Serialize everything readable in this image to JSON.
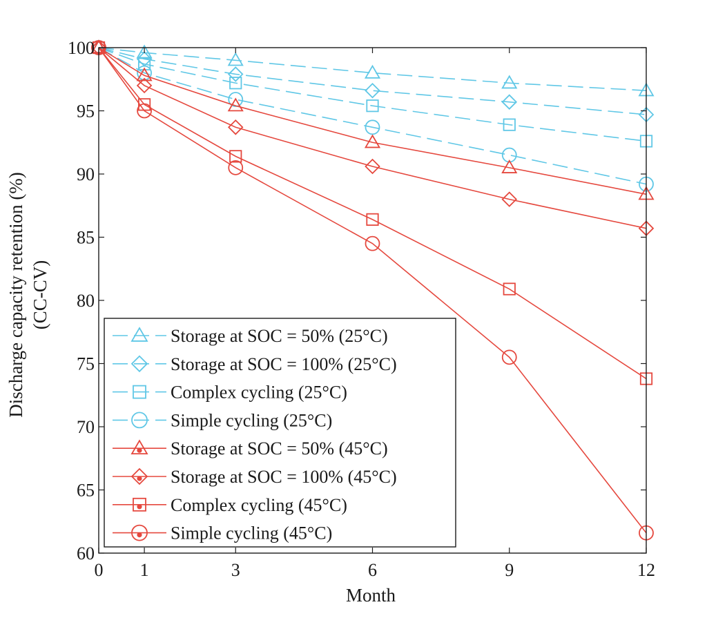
{
  "chart_data": {
    "type": "line",
    "title": "",
    "xlabel": "Month",
    "ylabel_line1": "Discharge capacity retention (%)",
    "ylabel_line2": "(CC-CV)",
    "xlim": [
      0,
      12
    ],
    "ylim": [
      60,
      100
    ],
    "xticks": [
      0,
      1,
      3,
      6,
      9,
      12
    ],
    "xtick_labels": [
      "0",
      "1",
      "3",
      "6",
      "9",
      "12"
    ],
    "yticks": [
      60,
      65,
      70,
      75,
      80,
      85,
      90,
      95,
      100
    ],
    "ytick_labels": [
      "60",
      "65",
      "70",
      "75",
      "80",
      "85",
      "90",
      "95",
      "100"
    ],
    "x": [
      0,
      1,
      3,
      6,
      9,
      12
    ],
    "legend_position": "bottom-left",
    "colors": {
      "blue": "#5fc7e6",
      "red": "#e5483e",
      "axis": "#1a1a1a"
    },
    "series": [
      {
        "name": "Storage at SOC = 50% (25°C)",
        "values": [
          100,
          99.6,
          99.0,
          98.0,
          97.2,
          96.6
        ],
        "color": "#5fc7e6",
        "marker": "triangle",
        "dashed": true,
        "filled_dot": false
      },
      {
        "name": "Storage at SOC = 100% (25°C)",
        "values": [
          100,
          99.1,
          97.9,
          96.6,
          95.7,
          94.7
        ],
        "color": "#5fc7e6",
        "marker": "diamond",
        "dashed": true,
        "filled_dot": false
      },
      {
        "name": "Complex cycling (25°C)",
        "values": [
          100,
          98.7,
          97.2,
          95.4,
          93.9,
          92.6
        ],
        "color": "#5fc7e6",
        "marker": "square",
        "dashed": true,
        "filled_dot": false
      },
      {
        "name": "Simple cycling (25°C)",
        "values": [
          100,
          98.0,
          95.9,
          93.7,
          91.5,
          89.2
        ],
        "color": "#5fc7e6",
        "marker": "circle",
        "dashed": true,
        "filled_dot": false
      },
      {
        "name": "Storage at SOC = 50% (45°C)",
        "values": [
          100,
          97.8,
          95.4,
          92.5,
          90.5,
          88.4
        ],
        "color": "#e5483e",
        "marker": "triangle",
        "dashed": false,
        "filled_dot": true
      },
      {
        "name": "Storage at SOC = 100% (45°C)",
        "values": [
          100,
          97.0,
          93.7,
          90.6,
          88.0,
          85.7
        ],
        "color": "#e5483e",
        "marker": "diamond",
        "dashed": false,
        "filled_dot": true
      },
      {
        "name": "Complex cycling (45°C)",
        "values": [
          100,
          95.5,
          91.4,
          86.4,
          80.9,
          73.8
        ],
        "color": "#e5483e",
        "marker": "square",
        "dashed": false,
        "filled_dot": true
      },
      {
        "name": "Simple cycling (45°C)",
        "values": [
          100,
          95.0,
          90.5,
          84.5,
          75.5,
          61.6
        ],
        "color": "#e5483e",
        "marker": "circle",
        "dashed": false,
        "filled_dot": true
      }
    ]
  }
}
